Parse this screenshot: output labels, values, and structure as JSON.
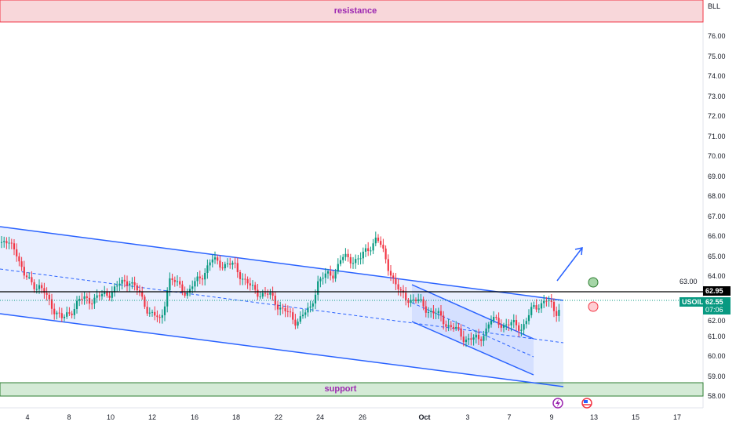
{
  "symbol": "USOIL",
  "currency": "BLL",
  "last_price": "62.55",
  "countdown": "07:06",
  "line_price": "62.95",
  "resistance_label": "resistance",
  "support_label": "support",
  "y_ticks": [
    "76.00",
    "75.00",
    "74.00",
    "73.00",
    "72.00",
    "71.00",
    "70.00",
    "69.00",
    "68.00",
    "67.00",
    "66.00",
    "65.00",
    "64.00",
    "63.00",
    "62.00",
    "61.00",
    "60.00",
    "59.00",
    "58.00"
  ],
  "x_ticks": [
    "4",
    "8",
    "10",
    "12",
    "16",
    "18",
    "22",
    "24",
    "26",
    "Oct",
    "3",
    "7",
    "9",
    "13",
    "15",
    "17"
  ],
  "colors": {
    "up": "#089981",
    "down": "#f23645",
    "channel": "#2962ff",
    "resistance": "#f23645",
    "support": "#2e7d32"
  },
  "icons": [
    "lightning-event-icon",
    "us-flag-event-icon"
  ],
  "price_path": [
    [
      0,
      65.7
    ],
    [
      20,
      65.5
    ],
    [
      30,
      64
    ],
    [
      50,
      63.5
    ],
    [
      80,
      61.8
    ],
    [
      100,
      62.8
    ],
    [
      130,
      63
    ],
    [
      165,
      63.9
    ],
    [
      190,
      62.3
    ],
    [
      205,
      61.7
    ],
    [
      215,
      63.9
    ],
    [
      240,
      63.2
    ],
    [
      270,
      64.8
    ],
    [
      300,
      64.5
    ],
    [
      320,
      63.4
    ],
    [
      345,
      63
    ],
    [
      375,
      61.8
    ],
    [
      395,
      62.3
    ],
    [
      405,
      63.8
    ],
    [
      425,
      64.2
    ],
    [
      435,
      64.9
    ],
    [
      460,
      64.9
    ],
    [
      480,
      66
    ],
    [
      490,
      65
    ],
    [
      510,
      63.1
    ],
    [
      530,
      62.8
    ],
    [
      560,
      62
    ],
    [
      590,
      61
    ],
    [
      610,
      60.8
    ],
    [
      625,
      61.8
    ],
    [
      650,
      61.6
    ],
    [
      665,
      61.5
    ],
    [
      680,
      62.4
    ],
    [
      695,
      62.9
    ],
    [
      708,
      62.2
    ],
    [
      713,
      62.5
    ]
  ]
}
